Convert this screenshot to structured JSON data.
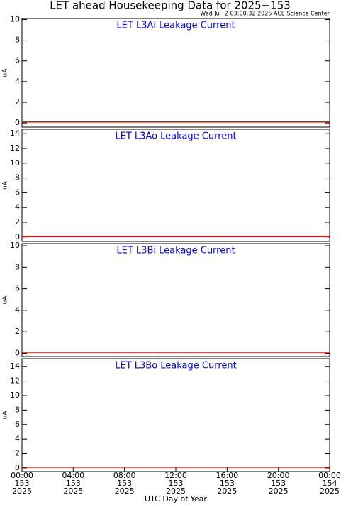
{
  "title": "LET ahead Housekeeping Data for 2025−153",
  "subtitle": "Wed Jul  2 03:00:32 2025 ACE Science Center",
  "xlabel": "UTC Day of Year",
  "chart_data": [
    {
      "type": "line",
      "title": "LET L3Ai Leakage Current",
      "ylabel": "uA",
      "x": [
        0,
        24
      ],
      "values": [
        0.1,
        0.1
      ],
      "color": "#ff0000",
      "title_color": "#0000ff",
      "xlim": [
        0,
        24
      ],
      "ylim": [
        -0.4,
        10.1
      ],
      "yticks": [
        0,
        2,
        4,
        6,
        8,
        10
      ]
    },
    {
      "type": "line",
      "title": "LET L3Ao Leakage Current",
      "ylabel": "uA",
      "x": [
        0,
        24
      ],
      "values": [
        0.1,
        0.1
      ],
      "color": "#ff0000",
      "title_color": "#0000ff",
      "xlim": [
        0,
        24
      ],
      "ylim": [
        -0.6,
        14.6
      ],
      "yticks": [
        0,
        2,
        4,
        6,
        8,
        10,
        12,
        14
      ]
    },
    {
      "type": "line",
      "title": "LET L3Bi Leakage Current",
      "ylabel": "uA",
      "x": [
        0,
        24
      ],
      "values": [
        0.1,
        0.1
      ],
      "color": "#ff0000",
      "title_color": "#0000ff",
      "xlim": [
        0,
        24
      ],
      "ylim": [
        -0.3,
        10.2
      ],
      "yticks": [
        0,
        2,
        4,
        6,
        8,
        10
      ]
    },
    {
      "type": "line",
      "title": "LET L3Bo Leakage Current",
      "ylabel": "uA",
      "x": [
        0,
        24
      ],
      "values": [
        0.1,
        0.1
      ],
      "color": "#ff0000",
      "title_color": "#0000ff",
      "xlim": [
        0,
        24
      ],
      "ylim": [
        -0.5,
        15.1
      ],
      "yticks": [
        0,
        2,
        4,
        6,
        8,
        10,
        12,
        14
      ],
      "xticks": [
        {
          "value": 0,
          "label": "00:00"
        },
        {
          "value": 4,
          "label": "04:00"
        },
        {
          "value": 8,
          "label": "08:00"
        },
        {
          "value": 12,
          "label": "12:00"
        },
        {
          "value": 16,
          "label": "16:00"
        },
        {
          "value": 20,
          "label": "20:00"
        },
        {
          "value": 24,
          "label": "00:00"
        }
      ],
      "xtick_sublabels": [
        [
          "153",
          "2025"
        ],
        [
          "153",
          "2025"
        ],
        [
          "153",
          "2025"
        ],
        [
          "153",
          "2025"
        ],
        [
          "153",
          "2025"
        ],
        [
          "153",
          "2025"
        ],
        [
          "154",
          "2025"
        ]
      ]
    }
  ]
}
